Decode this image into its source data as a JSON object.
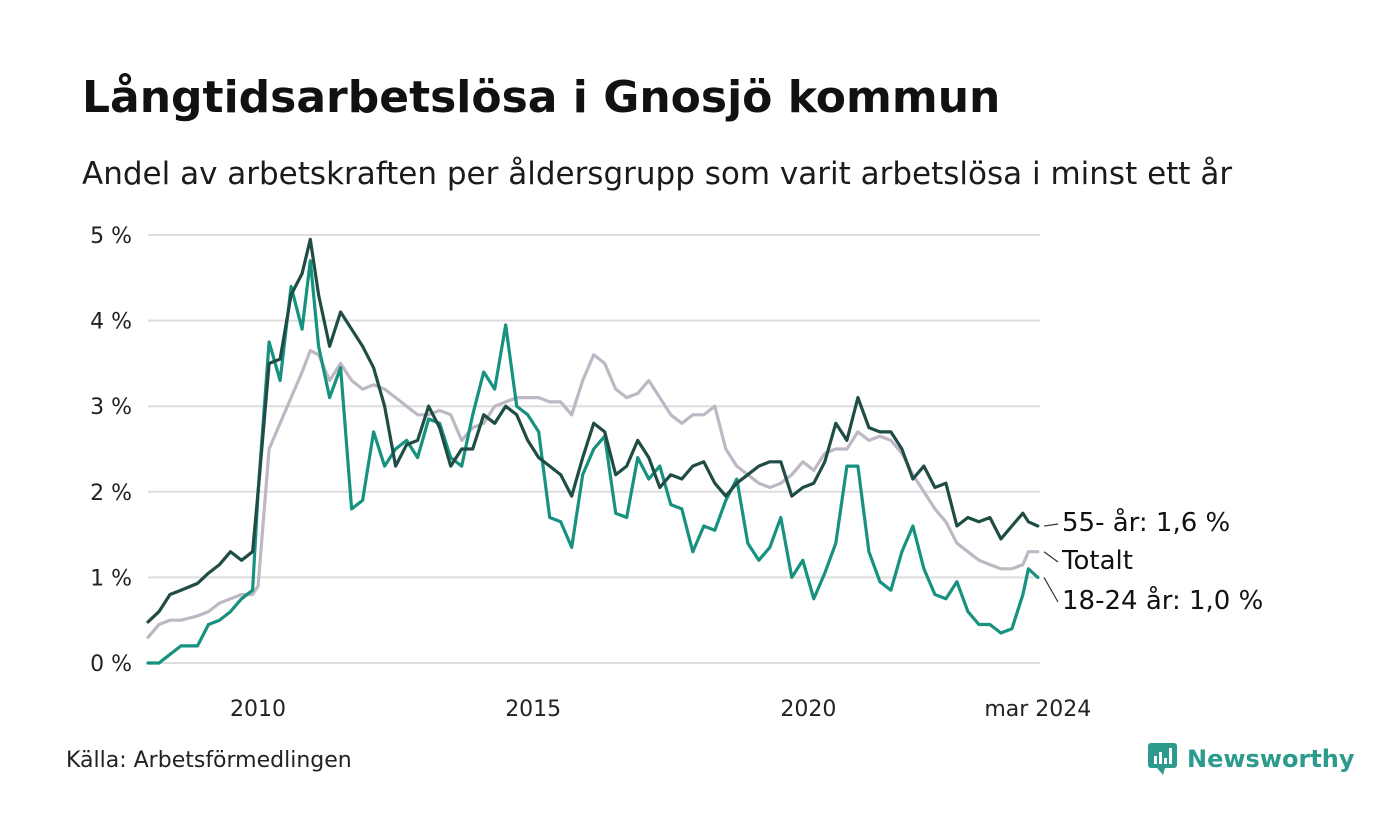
{
  "header": {
    "title": "Långtidsarbetslösa i Gnosjö kommun",
    "subtitle": "Andel av arbetskraften per åldersgrupp som varit arbetslösa i minst ett år"
  },
  "footer": {
    "source": "Källa: Arbetsförmedlingen",
    "brand": "Newsworthy"
  },
  "colors": {
    "age55": "#1f4d45",
    "total": "#bdb8c4",
    "age1824": "#16927f",
    "grid": "#dddddd"
  },
  "chart_data": {
    "type": "line",
    "title": "Långtidsarbetslösa i Gnosjö kommun",
    "xlabel": "",
    "ylabel": "",
    "ylim": [
      0,
      5
    ],
    "yticks": [
      0,
      1,
      2,
      3,
      4,
      5
    ],
    "ytick_labels": [
      "0 %",
      "1 %",
      "2 %",
      "3 %",
      "4 %",
      "5 %"
    ],
    "xlim": [
      2008.0,
      2024.21
    ],
    "xticks": [
      2010,
      2015,
      2020,
      2024.17
    ],
    "xtick_labels": [
      "2010",
      "2015",
      "2020",
      "mar 2024"
    ],
    "grid": true,
    "series": [
      {
        "name": "55- år",
        "end_label": "55- år: 1,6 %",
        "color_key": "age55",
        "x": [
          2008.0,
          2008.2,
          2008.4,
          2008.6,
          2008.9,
          2009.1,
          2009.3,
          2009.5,
          2009.7,
          2009.9,
          2010.0,
          2010.2,
          2010.4,
          2010.6,
          2010.8,
          2010.95,
          2011.1,
          2011.3,
          2011.5,
          2011.7,
          2011.9,
          2012.1,
          2012.3,
          2012.5,
          2012.7,
          2012.9,
          2013.1,
          2013.3,
          2013.5,
          2013.7,
          2013.9,
          2014.1,
          2014.3,
          2014.5,
          2014.7,
          2014.9,
          2015.1,
          2015.3,
          2015.5,
          2015.7,
          2015.9,
          2016.1,
          2016.3,
          2016.5,
          2016.7,
          2016.9,
          2017.1,
          2017.3,
          2017.5,
          2017.7,
          2017.9,
          2018.1,
          2018.3,
          2018.5,
          2018.7,
          2018.9,
          2019.1,
          2019.3,
          2019.5,
          2019.7,
          2019.9,
          2020.1,
          2020.3,
          2020.5,
          2020.7,
          2020.9,
          2021.1,
          2021.3,
          2021.5,
          2021.7,
          2021.9,
          2022.1,
          2022.3,
          2022.5,
          2022.7,
          2022.9,
          2023.1,
          2023.3,
          2023.5,
          2023.7,
          2023.9,
          2024.0,
          2024.17
        ],
        "values": [
          0.48,
          0.6,
          0.8,
          0.85,
          0.93,
          1.05,
          1.15,
          1.3,
          1.2,
          1.3,
          2.0,
          3.5,
          3.55,
          4.3,
          4.55,
          4.95,
          4.3,
          3.7,
          4.1,
          3.9,
          3.7,
          3.45,
          3.0,
          2.3,
          2.55,
          2.6,
          3.0,
          2.75,
          2.3,
          2.5,
          2.5,
          2.9,
          2.8,
          3.0,
          2.9,
          2.6,
          2.4,
          2.3,
          2.2,
          1.95,
          2.4,
          2.8,
          2.7,
          2.2,
          2.3,
          2.6,
          2.4,
          2.05,
          2.2,
          2.15,
          2.3,
          2.35,
          2.1,
          1.95,
          2.1,
          2.2,
          2.3,
          2.35,
          2.35,
          1.95,
          2.05,
          2.1,
          2.35,
          2.8,
          2.6,
          3.1,
          2.75,
          2.7,
          2.7,
          2.5,
          2.15,
          2.3,
          2.05,
          2.1,
          1.6,
          1.7,
          1.65,
          1.7,
          1.45,
          1.6,
          1.75,
          1.65,
          1.6
        ]
      },
      {
        "name": "Totalt",
        "end_label": "Totalt",
        "color_key": "total",
        "x": [
          2008.0,
          2008.2,
          2008.4,
          2008.6,
          2008.9,
          2009.1,
          2009.3,
          2009.5,
          2009.7,
          2009.9,
          2010.0,
          2010.2,
          2010.4,
          2010.6,
          2010.8,
          2010.95,
          2011.1,
          2011.3,
          2011.5,
          2011.7,
          2011.9,
          2012.1,
          2012.3,
          2012.5,
          2012.7,
          2012.9,
          2013.1,
          2013.3,
          2013.5,
          2013.7,
          2013.9,
          2014.1,
          2014.3,
          2014.5,
          2014.7,
          2014.9,
          2015.1,
          2015.3,
          2015.5,
          2015.7,
          2015.9,
          2016.1,
          2016.3,
          2016.5,
          2016.7,
          2016.9,
          2017.1,
          2017.3,
          2017.5,
          2017.7,
          2017.9,
          2018.1,
          2018.3,
          2018.5,
          2018.7,
          2018.9,
          2019.1,
          2019.3,
          2019.5,
          2019.7,
          2019.9,
          2020.1,
          2020.3,
          2020.5,
          2020.7,
          2020.9,
          2021.1,
          2021.3,
          2021.5,
          2021.7,
          2021.9,
          2022.1,
          2022.3,
          2022.5,
          2022.7,
          2022.9,
          2023.1,
          2023.3,
          2023.5,
          2023.7,
          2023.9,
          2024.0,
          2024.17
        ],
        "values": [
          0.3,
          0.45,
          0.5,
          0.5,
          0.55,
          0.6,
          0.7,
          0.75,
          0.8,
          0.8,
          0.9,
          2.5,
          2.8,
          3.1,
          3.4,
          3.65,
          3.6,
          3.3,
          3.5,
          3.3,
          3.2,
          3.25,
          3.2,
          3.1,
          3.0,
          2.9,
          2.9,
          2.95,
          2.9,
          2.6,
          2.75,
          2.8,
          3.0,
          3.05,
          3.1,
          3.1,
          3.1,
          3.05,
          3.05,
          2.9,
          3.3,
          3.6,
          3.5,
          3.2,
          3.1,
          3.15,
          3.3,
          3.1,
          2.9,
          2.8,
          2.9,
          2.9,
          3.0,
          2.5,
          2.3,
          2.2,
          2.1,
          2.05,
          2.1,
          2.2,
          2.35,
          2.25,
          2.45,
          2.5,
          2.5,
          2.7,
          2.6,
          2.65,
          2.6,
          2.45,
          2.2,
          2.0,
          1.8,
          1.65,
          1.4,
          1.3,
          1.2,
          1.15,
          1.1,
          1.1,
          1.15,
          1.3,
          1.3
        ]
      },
      {
        "name": "18-24 år",
        "end_label": "18-24 år: 1,0 %",
        "color_key": "age1824",
        "x": [
          2008.0,
          2008.2,
          2008.4,
          2008.6,
          2008.9,
          2009.1,
          2009.3,
          2009.5,
          2009.7,
          2009.9,
          2010.0,
          2010.2,
          2010.4,
          2010.6,
          2010.8,
          2010.95,
          2011.1,
          2011.3,
          2011.5,
          2011.7,
          2011.9,
          2012.1,
          2012.3,
          2012.5,
          2012.7,
          2012.9,
          2013.1,
          2013.3,
          2013.5,
          2013.7,
          2013.9,
          2014.1,
          2014.3,
          2014.5,
          2014.7,
          2014.9,
          2015.1,
          2015.3,
          2015.5,
          2015.7,
          2015.9,
          2016.1,
          2016.3,
          2016.5,
          2016.7,
          2016.9,
          2017.1,
          2017.3,
          2017.5,
          2017.7,
          2017.9,
          2018.1,
          2018.3,
          2018.5,
          2018.7,
          2018.9,
          2019.1,
          2019.3,
          2019.5,
          2019.7,
          2019.9,
          2020.1,
          2020.3,
          2020.5,
          2020.7,
          2020.9,
          2021.1,
          2021.3,
          2021.5,
          2021.7,
          2021.9,
          2022.1,
          2022.3,
          2022.5,
          2022.7,
          2022.9,
          2023.1,
          2023.3,
          2023.5,
          2023.7,
          2023.9,
          2024.0,
          2024.17
        ],
        "values": [
          0.0,
          0.0,
          0.1,
          0.2,
          0.2,
          0.45,
          0.5,
          0.6,
          0.75,
          0.85,
          2.0,
          3.75,
          3.3,
          4.4,
          3.9,
          4.7,
          3.7,
          3.1,
          3.45,
          1.8,
          1.9,
          2.7,
          2.3,
          2.5,
          2.6,
          2.4,
          2.85,
          2.8,
          2.4,
          2.3,
          2.9,
          3.4,
          3.2,
          3.95,
          3.0,
          2.9,
          2.7,
          1.7,
          1.65,
          1.35,
          2.2,
          2.5,
          2.65,
          1.75,
          1.7,
          2.4,
          2.15,
          2.3,
          1.85,
          1.8,
          1.3,
          1.6,
          1.55,
          1.9,
          2.15,
          1.4,
          1.2,
          1.35,
          1.7,
          1.0,
          1.2,
          0.75,
          1.05,
          1.4,
          2.3,
          2.3,
          1.3,
          0.95,
          0.85,
          1.3,
          1.6,
          1.1,
          0.8,
          0.75,
          0.95,
          0.6,
          0.45,
          0.45,
          0.35,
          0.4,
          0.8,
          1.1,
          1.0
        ]
      }
    ]
  }
}
